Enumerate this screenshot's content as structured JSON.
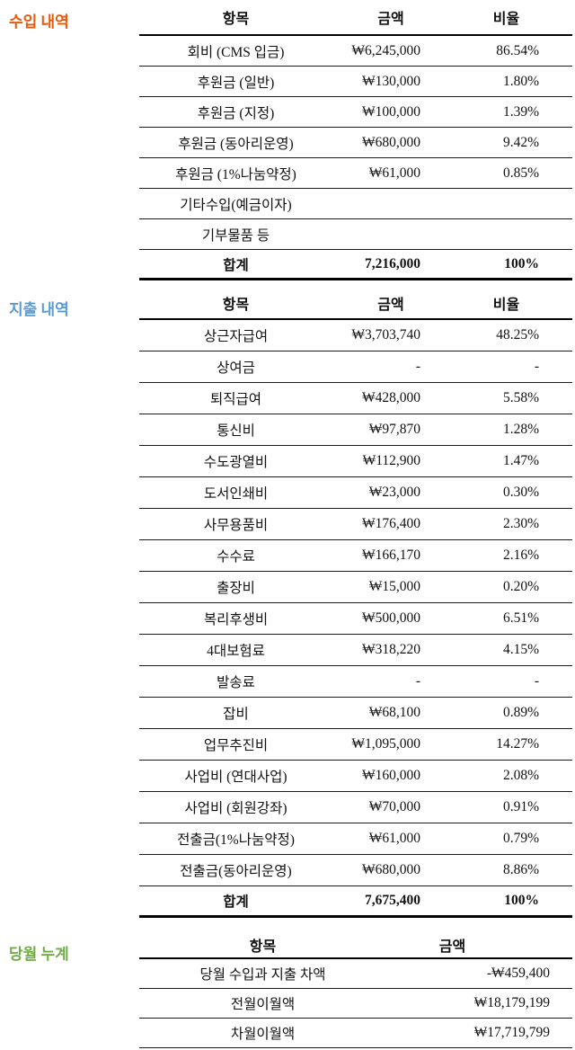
{
  "sections": [
    {
      "id": "income",
      "label": "수입 내역",
      "label_color": "#e8590c",
      "headers": {
        "item": "항목",
        "amount": "금액",
        "ratio": "비율"
      },
      "rows": [
        {
          "item": "회비 (CMS 입금)",
          "amount": "₩6,245,000",
          "ratio": "86.54%",
          "bold": false
        },
        {
          "item": "후원금 (일반)",
          "amount": "₩130,000",
          "ratio": "1.80%",
          "bold": false
        },
        {
          "item": "후원금 (지정)",
          "amount": "₩100,000",
          "ratio": "1.39%",
          "bold": false
        },
        {
          "item": "후원금 (동아리운영)",
          "amount": "₩680,000",
          "ratio": "9.42%",
          "bold": false
        },
        {
          "item": "후원금 (1%나눔약정)",
          "amount": "₩61,000",
          "ratio": "0.85%",
          "bold": false
        },
        {
          "item": "기타수입(예금이자)",
          "amount": "",
          "ratio": "",
          "bold": false
        },
        {
          "item": "기부물품 등",
          "amount": "",
          "ratio": "",
          "bold": false
        },
        {
          "item": "합계",
          "amount": "7,216,000",
          "ratio": "100%",
          "bold": true
        }
      ]
    },
    {
      "id": "expense",
      "label": "지출 내역",
      "label_color": "#5b9bd5",
      "headers": {
        "item": "항목",
        "amount": "금액",
        "ratio": "비율"
      },
      "rows": [
        {
          "item": "상근자급여",
          "amount": "₩3,703,740",
          "ratio": "48.25%",
          "bold": false
        },
        {
          "item": "상여금",
          "amount": "-",
          "ratio": "-",
          "bold": false
        },
        {
          "item": "퇴직급여",
          "amount": "₩428,000",
          "ratio": "5.58%",
          "bold": false
        },
        {
          "item": "통신비",
          "amount": "₩97,870",
          "ratio": "1.28%",
          "bold": false
        },
        {
          "item": "수도광열비",
          "amount": "₩112,900",
          "ratio": "1.47%",
          "bold": false
        },
        {
          "item": "도서인쇄비",
          "amount": "₩23,000",
          "ratio": "0.30%",
          "bold": false
        },
        {
          "item": "사무용품비",
          "amount": "₩176,400",
          "ratio": "2.30%",
          "bold": false
        },
        {
          "item": "수수료",
          "amount": "₩166,170",
          "ratio": "2.16%",
          "bold": false
        },
        {
          "item": "출장비",
          "amount": "₩15,000",
          "ratio": "0.20%",
          "bold": false
        },
        {
          "item": "복리후생비",
          "amount": "₩500,000",
          "ratio": "6.51%",
          "bold": false
        },
        {
          "item": "4대보험료",
          "amount": "₩318,220",
          "ratio": "4.15%",
          "bold": false
        },
        {
          "item": "발송료",
          "amount": "-",
          "ratio": "-",
          "bold": false
        },
        {
          "item": "잡비",
          "amount": "₩68,100",
          "ratio": "0.89%",
          "bold": false
        },
        {
          "item": "업무추진비",
          "amount": "₩1,095,000",
          "ratio": "14.27%",
          "bold": false
        },
        {
          "item": "사업비 (연대사업)",
          "amount": "₩160,000",
          "ratio": "2.08%",
          "bold": false
        },
        {
          "item": "사업비 (회원강좌)",
          "amount": "₩70,000",
          "ratio": "0.91%",
          "bold": false
        },
        {
          "item": "전출금(1%나눔약정)",
          "amount": "₩61,000",
          "ratio": "0.79%",
          "bold": false
        },
        {
          "item": "전출금(동아리운영)",
          "amount": "₩680,000",
          "ratio": "8.86%",
          "bold": false
        },
        {
          "item": "합계",
          "amount": "7,675,400",
          "ratio": "100%",
          "bold": true
        }
      ]
    },
    {
      "id": "summary",
      "label": "당월 누계",
      "label_color": "#70ad47",
      "headers": {
        "item": "항목",
        "amount": "금액"
      },
      "rows": [
        {
          "item": "당월 수입과 지출 차액",
          "amount": "-₩459,400",
          "bold": false
        },
        {
          "item": "전월이월액",
          "amount": "₩18,179,199",
          "bold": false
        },
        {
          "item": "차월이월액",
          "amount": "₩17,719,799",
          "bold": false
        }
      ]
    }
  ]
}
